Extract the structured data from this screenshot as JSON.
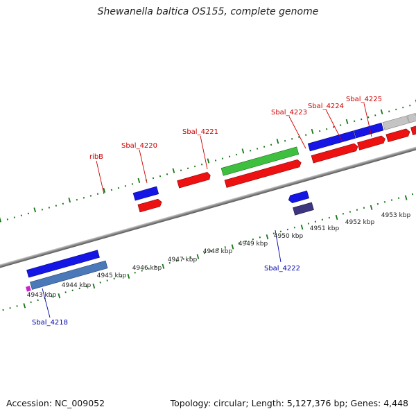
{
  "title": "Shewanella baltica OS155, complete genome",
  "footer": {
    "accession": "Accession: NC_009052",
    "summary": "Topology: circular; Length: 5,127,376 bp; Genes: 4,448"
  },
  "colors": {
    "forward_label": "#cc0000",
    "reverse_label": "#0000aa",
    "cds": "#ee1111",
    "gene_blue": "#1515e6",
    "gene_green": "#3fbf3f",
    "gene_gray": "#c4c4c4",
    "gene_steel": "#4a78b8",
    "gene_navy": "#3d3580",
    "tick": "#157515"
  },
  "kbp_labels": [
    "4943 kbp",
    "4944 kbp",
    "4945 kbp",
    "4946 kbp",
    "4947 kbp",
    "4948 kbp",
    "4949 kbp",
    "4950 kbp",
    "4951 kbp",
    "4952 kbp",
    "4953 kbp"
  ],
  "gene_labels": {
    "ribB": "ribB",
    "sbal_4220": "Sbal_4220",
    "sbal_4221": "Sbal_4221",
    "sbal_4223": "Sbal_4223",
    "sbal_4224": "Sbal_4224",
    "sbal_4225": "Sbal_4225",
    "sbal_4222": "Sbal_4222",
    "sbal_4218": "Sbal_4218"
  }
}
